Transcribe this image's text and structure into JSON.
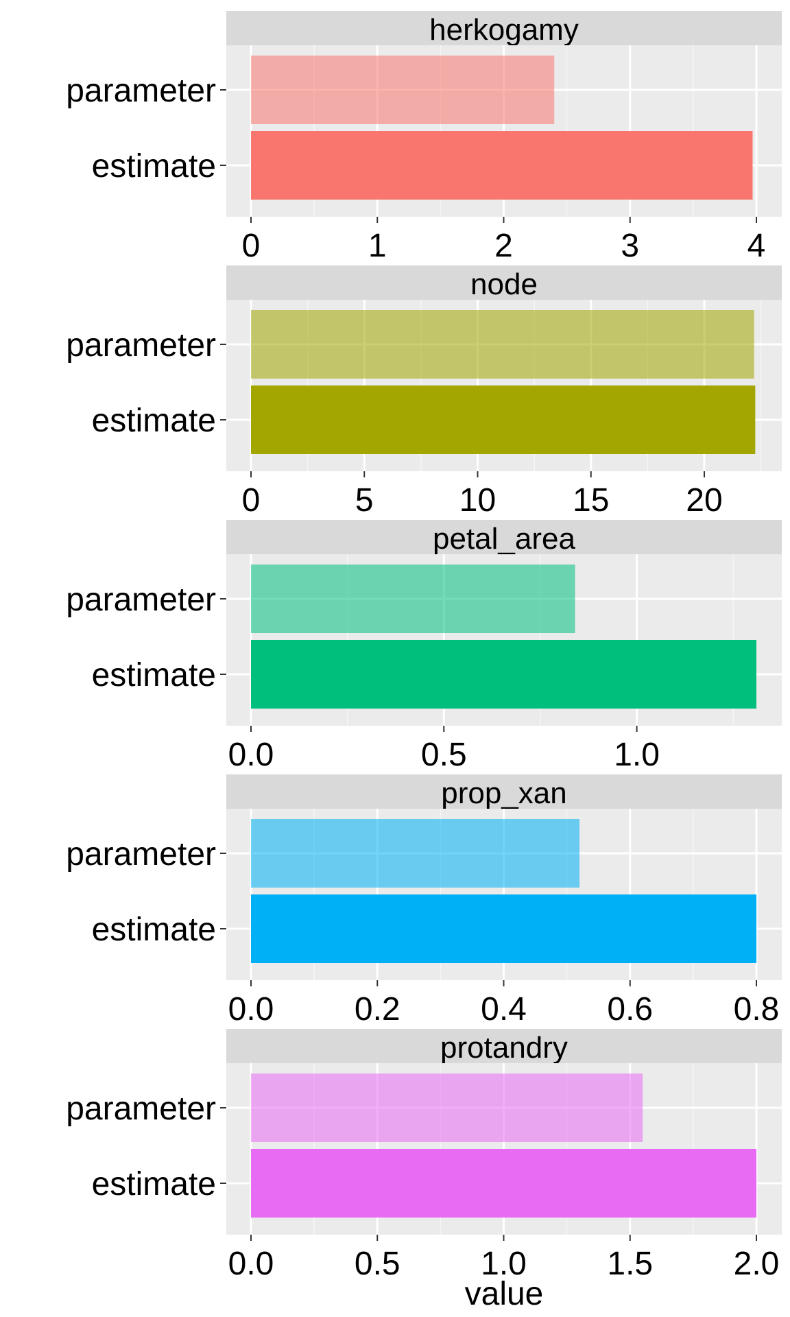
{
  "chart_data": {
    "type": "bar",
    "orientation": "horizontal",
    "xlabel": "value",
    "categories": [
      "parameter",
      "estimate"
    ],
    "grid": true,
    "panels": [
      {
        "strip": "herkogamy",
        "color": "#F8766D",
        "xlim": [
          0,
          4
        ],
        "ticks": [
          "0",
          "1",
          "2",
          "3",
          "4"
        ],
        "tick_values": [
          0,
          1,
          2,
          3,
          4
        ],
        "values": {
          "parameter": 2.4,
          "estimate": 3.97
        }
      },
      {
        "strip": "node",
        "color": "#A3A500",
        "xlim": [
          0,
          22.3
        ],
        "ticks": [
          "0",
          "5",
          "10",
          "15",
          "20"
        ],
        "tick_values": [
          0,
          5,
          10,
          15,
          20
        ],
        "values": {
          "parameter": 22.2,
          "estimate": 22.25
        }
      },
      {
        "strip": "petal_area",
        "color": "#00BF7D",
        "xlim": [
          0,
          1.31
        ],
        "ticks": [
          "0.0",
          "0.5",
          "1.0"
        ],
        "tick_values": [
          0.0,
          0.5,
          1.0
        ],
        "values": {
          "parameter": 0.84,
          "estimate": 1.31
        }
      },
      {
        "strip": "prop_xan",
        "color": "#00B0F6",
        "xlim": [
          0,
          0.8
        ],
        "ticks": [
          "0.0",
          "0.2",
          "0.4",
          "0.6",
          "0.8"
        ],
        "tick_values": [
          0.0,
          0.2,
          0.4,
          0.6,
          0.8
        ],
        "values": {
          "parameter": 0.52,
          "estimate": 0.8
        }
      },
      {
        "strip": "protandry",
        "color": "#E76BF3",
        "xlim": [
          0,
          2.0
        ],
        "ticks": [
          "0.0",
          "0.5",
          "1.0",
          "1.5",
          "2.0"
        ],
        "tick_values": [
          0.0,
          0.5,
          1.0,
          1.5,
          2.0
        ],
        "values": {
          "parameter": 1.55,
          "estimate": 2.0
        }
      }
    ]
  }
}
